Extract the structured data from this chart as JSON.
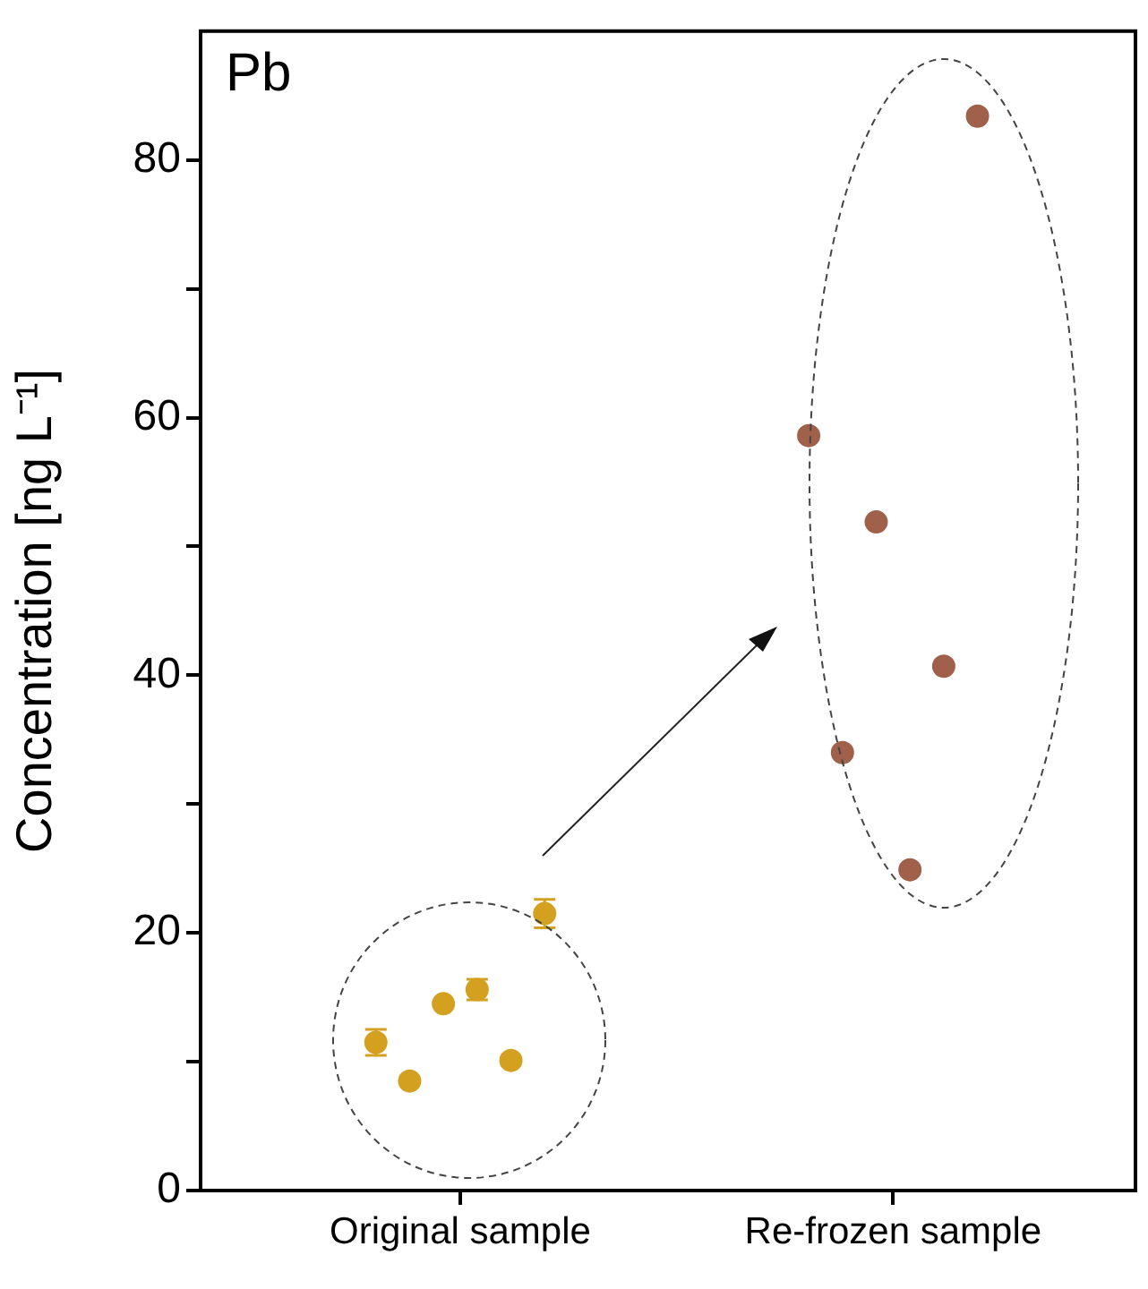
{
  "chart_data": {
    "type": "scatter",
    "ylabel": "Concentration [ng L⁻¹]",
    "annotations": [
      "Pb"
    ],
    "categories": [
      "Original sample",
      "Re-frozen sample"
    ],
    "ylim": [
      0,
      90
    ],
    "yticks": [
      0,
      {
        "value": 10,
        "label": null
      },
      20,
      {
        "value": 30,
        "label": null
      },
      40,
      {
        "value": 50,
        "label": null
      },
      60,
      {
        "value": 70,
        "label": null
      },
      80
    ],
    "grid": false,
    "legend": false,
    "marker": "circle",
    "series": [
      {
        "color": "#d4a020",
        "x": [
          "Original sample",
          "Original sample",
          "Original sample",
          "Original sample",
          "Original sample",
          "Original sample"
        ],
        "values": [
          11.5,
          8.5,
          14.5,
          15.6,
          10.1,
          21.5
        ],
        "errors": [
          1.0,
          null,
          null,
          0.8,
          null,
          1.1
        ]
      },
      {
        "color": "#a0604a",
        "x": [
          "Re-frozen sample",
          "Re-frozen sample",
          "Re-frozen sample",
          "Re-frozen sample",
          "Re-frozen sample",
          "Re-frozen sample"
        ],
        "values": [
          58.6,
          34.0,
          51.9,
          24.9,
          40.7,
          83.4
        ]
      }
    ]
  }
}
